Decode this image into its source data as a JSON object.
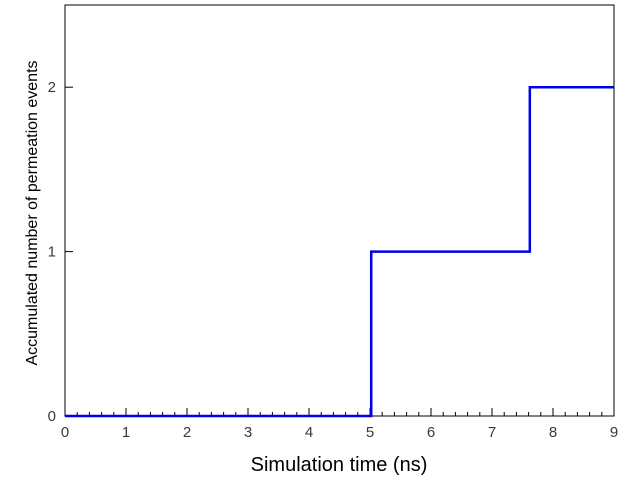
{
  "chart_data": {
    "type": "line",
    "xlabel": "Simulation time (ns)",
    "ylabel": "Accumulated number of permeation events",
    "xlim": [
      0,
      9
    ],
    "ylim": [
      0,
      2.5
    ],
    "x_ticks": [
      0,
      1,
      2,
      3,
      4,
      5,
      6,
      7,
      8,
      9
    ],
    "y_ticks": [
      0,
      1,
      2
    ],
    "grid": false,
    "series": [
      {
        "color": "#0000e6",
        "step": true,
        "x": [
          0,
          5.02,
          7.62,
          9
        ],
        "y": [
          0,
          1,
          2,
          2
        ]
      }
    ]
  }
}
